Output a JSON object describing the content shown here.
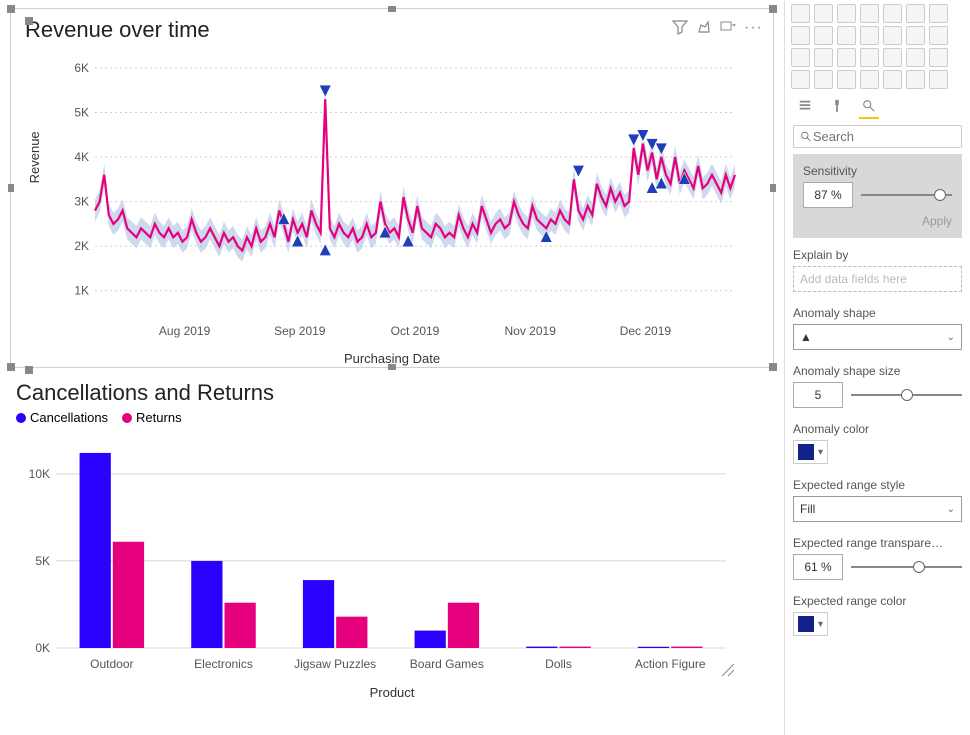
{
  "line_chart": {
    "title": "Revenue over time",
    "type": "line",
    "y_label": "Revenue",
    "x_label": "Purchasing Date",
    "y_ticks": [
      "1K",
      "2K",
      "3K",
      "4K",
      "5K",
      "6K"
    ],
    "y_domain": [
      0.5,
      6.2
    ],
    "x_ticks": [
      "Aug 2019",
      "Sep 2019",
      "Oct 2019",
      "Nov 2019",
      "Dec 2019"
    ],
    "series_color": "#e6007e",
    "band_color": "#a6b9e0",
    "anomaly_color": "#1f3fb8",
    "line_width": 2.2,
    "grid_color": "#d0d0d0",
    "background_color": "#ffffff",
    "n": 140,
    "values": [
      2.8,
      3.0,
      3.6,
      2.7,
      2.5,
      2.6,
      2.8,
      2.4,
      2.3,
      2.2,
      2.4,
      2.3,
      2.2,
      2.5,
      2.3,
      2.2,
      2.4,
      2.2,
      2.3,
      2.1,
      2.2,
      2.6,
      2.3,
      2.1,
      2.2,
      2.4,
      2.2,
      2.0,
      2.3,
      2.1,
      2.2,
      2.0,
      1.9,
      2.2,
      2.0,
      2.4,
      2.1,
      2.2,
      2.5,
      2.2,
      2.8,
      2.5,
      2.1,
      2.6,
      2.3,
      2.5,
      2.2,
      2.8,
      2.5,
      2.3,
      5.3,
      2.4,
      2.2,
      2.5,
      2.3,
      2.2,
      2.4,
      2.1,
      2.2,
      2.5,
      2.2,
      2.3,
      3.0,
      2.5,
      2.3,
      2.4,
      2.2,
      3.1,
      2.6,
      2.3,
      2.9,
      2.4,
      2.3,
      2.2,
      2.5,
      2.4,
      2.2,
      2.3,
      2.2,
      2.7,
      2.4,
      2.2,
      2.5,
      2.3,
      2.9,
      2.6,
      2.3,
      2.5,
      2.6,
      2.4,
      2.5,
      3.0,
      2.7,
      2.5,
      2.4,
      2.9,
      2.6,
      2.5,
      2.4,
      2.6,
      2.5,
      2.8,
      2.6,
      2.5,
      3.5,
      2.8,
      2.6,
      2.9,
      2.7,
      3.4,
      3.1,
      2.9,
      3.3,
      3.0,
      3.2,
      2.9,
      3.0,
      4.2,
      3.6,
      4.3,
      3.7,
      4.1,
      3.5,
      4.0,
      3.6,
      3.4,
      4.0,
      3.4,
      3.7,
      3.5,
      3.3,
      3.8,
      3.3,
      3.4,
      3.6,
      3.4,
      3.2,
      3.6,
      3.3,
      3.6
    ],
    "band_half": 0.25,
    "anomalies_high": [
      {
        "i": 50,
        "y": 5.3
      },
      {
        "i": 105,
        "y": 3.5
      },
      {
        "i": 117,
        "y": 4.2
      },
      {
        "i": 119,
        "y": 4.3
      },
      {
        "i": 121,
        "y": 4.1
      },
      {
        "i": 123,
        "y": 4.0
      }
    ],
    "anomalies_low": [
      {
        "i": 41,
        "y": 2.8
      },
      {
        "i": 44,
        "y": 2.3
      },
      {
        "i": 50,
        "y": 2.1
      },
      {
        "i": 63,
        "y": 2.5
      },
      {
        "i": 68,
        "y": 2.3
      },
      {
        "i": 98,
        "y": 2.4
      },
      {
        "i": 121,
        "y": 3.5
      },
      {
        "i": 123,
        "y": 3.6
      },
      {
        "i": 128,
        "y": 3.7
      }
    ]
  },
  "bar_chart": {
    "title": "Cancellations and Returns",
    "type": "grouped-bar",
    "legend": [
      {
        "label": "Cancellations",
        "color": "#2a00ff"
      },
      {
        "label": "Returns",
        "color": "#e6007e"
      }
    ],
    "x_label": "Product",
    "y_ticks": [
      "0K",
      "5K",
      "10K"
    ],
    "y_domain": [
      0,
      12
    ],
    "categories": [
      "Outdoor",
      "Electronics",
      "Jigsaw Puzzles",
      "Board Games",
      "Dolls",
      "Action Figure"
    ],
    "series": [
      {
        "color": "#2a00ff",
        "values": [
          11.2,
          5.0,
          3.9,
          1.0,
          0.08,
          0.07
        ]
      },
      {
        "color": "#e6007e",
        "values": [
          6.1,
          2.6,
          1.8,
          2.6,
          0.08,
          0.08
        ]
      }
    ],
    "grid_color": "#d8d8d8"
  },
  "viz_panel": {
    "search_placeholder": "Search",
    "sensitivity": {
      "label": "Sensitivity",
      "value": "87",
      "pct": "%",
      "slider": 87
    },
    "apply": "Apply",
    "explain_by": {
      "label": "Explain by",
      "placeholder": "Add data fields here"
    },
    "anomaly_shape": {
      "label": "Anomaly shape",
      "value": "▲"
    },
    "anomaly_shape_size": {
      "label": "Anomaly shape size",
      "value": "5",
      "slider": 50
    },
    "anomaly_color": {
      "label": "Anomaly color",
      "value": "#13228a"
    },
    "expected_range_style": {
      "label": "Expected range style",
      "value": "Fill"
    },
    "expected_range_transp": {
      "label": "Expected range transpare…",
      "value": "61",
      "pct": "%",
      "slider": 61
    },
    "expected_range_color": {
      "label": "Expected range color",
      "value": "#13228a"
    }
  }
}
